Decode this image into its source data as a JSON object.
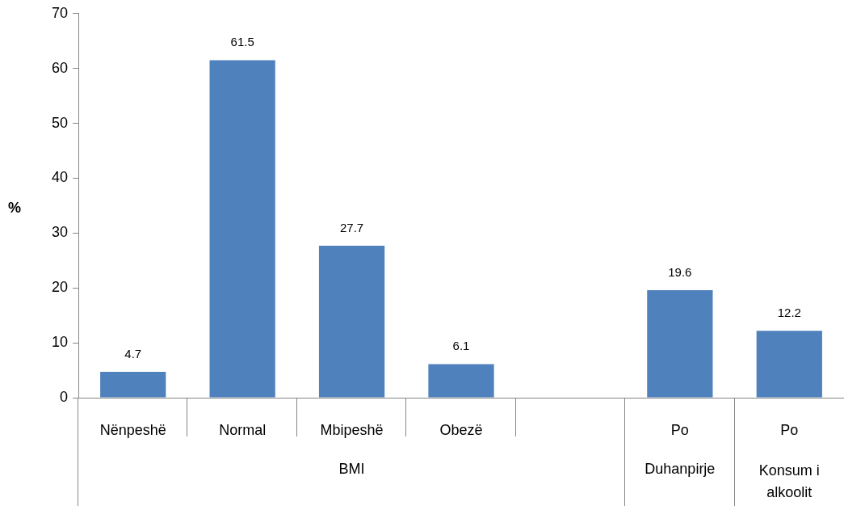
{
  "chart_data": {
    "type": "bar",
    "ylabel": "%",
    "categories": [
      "Nënpeshë",
      "Normal",
      "Mbipeshë",
      "Obezë",
      null,
      "Po",
      "Po"
    ],
    "values": [
      4.7,
      61.5,
      27.7,
      6.1,
      null,
      19.6,
      12.2
    ],
    "color": "#4f81bd",
    "ylim": [
      0,
      70
    ],
    "yticks": [
      0,
      10,
      20,
      30,
      40,
      50,
      60,
      70
    ],
    "grid": false,
    "legend": false,
    "data_labels": true,
    "annotations": [
      "BMI",
      "Duhanpirje",
      "Konsum i alkoolit"
    ]
  }
}
